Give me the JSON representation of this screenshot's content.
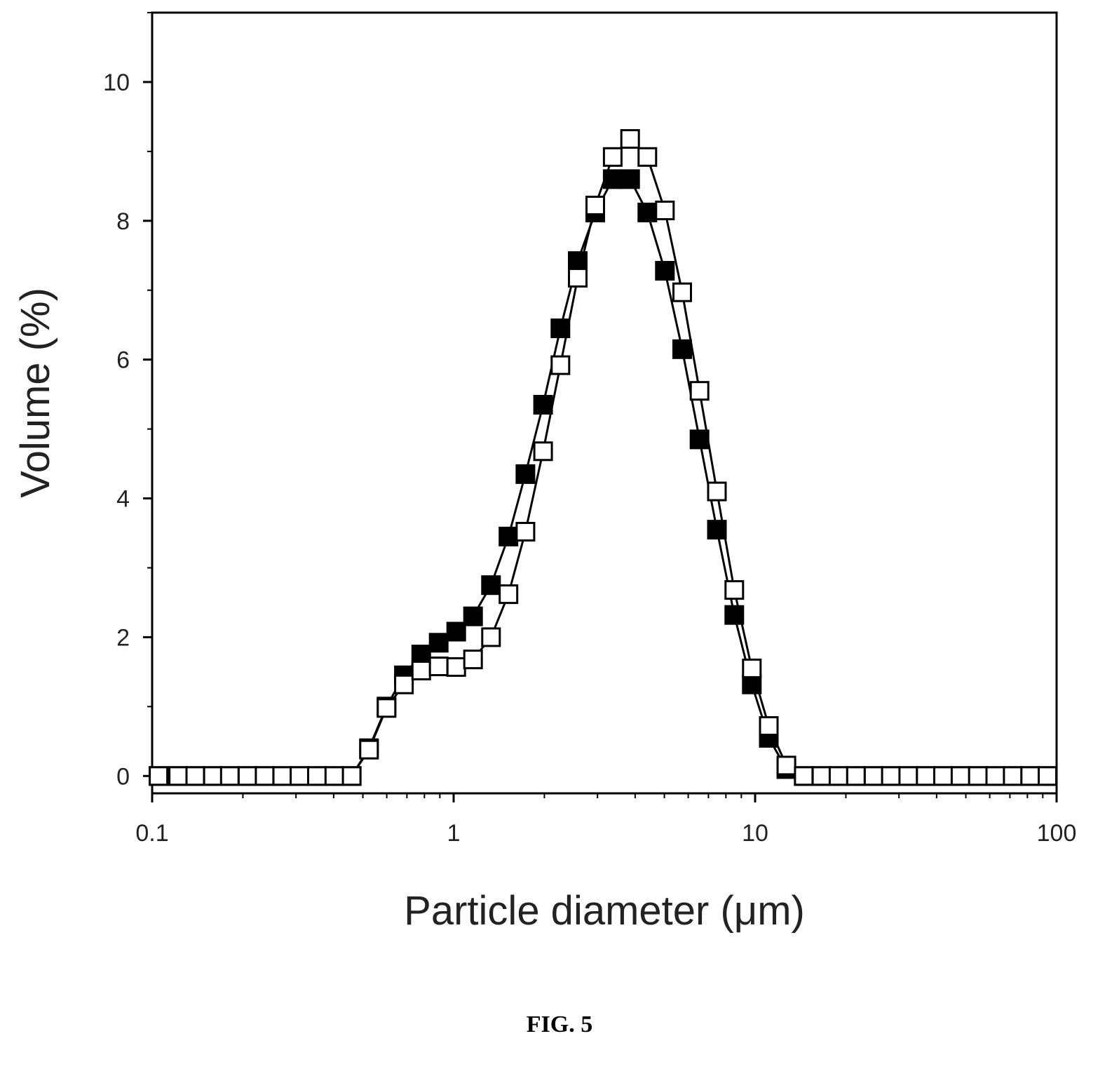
{
  "figure": {
    "caption": "FIG. 5"
  },
  "chart_data": {
    "type": "line",
    "xlabel": "Particle diameter (μm)",
    "ylabel": "Volume (%)",
    "x_scale": "log",
    "xlim": [
      0.1,
      100
    ],
    "ylim": [
      -0.25,
      11
    ],
    "x_ticks": [
      {
        "value": 0.1,
        "label": "0.1"
      },
      {
        "value": 1,
        "label": "1"
      },
      {
        "value": 10,
        "label": "10"
      },
      {
        "value": 100,
        "label": "100"
      }
    ],
    "y_ticks": [
      {
        "value": 0,
        "label": "0"
      },
      {
        "value": 2,
        "label": "2"
      },
      {
        "value": 4,
        "label": "4"
      },
      {
        "value": 6,
        "label": "6"
      },
      {
        "value": 8,
        "label": "8"
      },
      {
        "value": 10,
        "label": "10"
      }
    ],
    "grid": false,
    "legend": "none",
    "x": [
      0.105,
      0.122,
      0.139,
      0.159,
      0.181,
      0.207,
      0.236,
      0.27,
      0.308,
      0.352,
      0.402,
      0.459,
      0.524,
      0.599,
      0.684,
      0.781,
      0.892,
      1.02,
      1.16,
      1.33,
      1.52,
      1.73,
      1.98,
      2.26,
      2.58,
      2.95,
      3.37,
      3.85,
      4.39,
      5.02,
      5.73,
      6.54,
      7.47,
      8.53,
      9.75,
      11.1,
      12.7,
      14.5,
      16.6,
      18.9,
      21.6,
      24.7,
      28.2,
      32.2,
      36.8,
      42.0,
      48.0,
      54.8,
      62.6,
      71.5,
      81.7,
      93.3
    ],
    "series": [
      {
        "marker": "filled-square",
        "color": "#000000",
        "values": [
          0,
          0,
          0,
          0,
          0,
          0,
          0,
          0,
          0,
          0,
          0,
          0,
          0.4,
          1.0,
          1.45,
          1.75,
          1.92,
          2.08,
          2.3,
          2.75,
          3.45,
          4.35,
          5.35,
          6.45,
          7.42,
          8.12,
          8.6,
          8.6,
          8.12,
          7.28,
          6.15,
          4.85,
          3.55,
          2.32,
          1.32,
          0.55,
          0.1,
          0,
          0,
          0,
          0,
          0,
          0,
          0,
          0,
          0,
          0,
          0,
          0,
          0,
          0,
          0
        ]
      },
      {
        "marker": "open-square",
        "color": "#000000",
        "values": [
          0,
          0,
          0,
          0,
          0,
          0,
          0,
          0,
          0,
          0,
          0,
          0,
          0.38,
          0.98,
          1.32,
          1.52,
          1.58,
          1.57,
          1.68,
          2.0,
          2.62,
          3.52,
          4.68,
          5.92,
          7.18,
          8.22,
          8.92,
          9.18,
          8.92,
          8.15,
          6.97,
          5.55,
          4.1,
          2.68,
          1.55,
          0.72,
          0.15,
          0,
          0,
          0,
          0,
          0,
          0,
          0,
          0,
          0,
          0,
          0,
          0,
          0,
          0,
          0
        ]
      }
    ]
  }
}
